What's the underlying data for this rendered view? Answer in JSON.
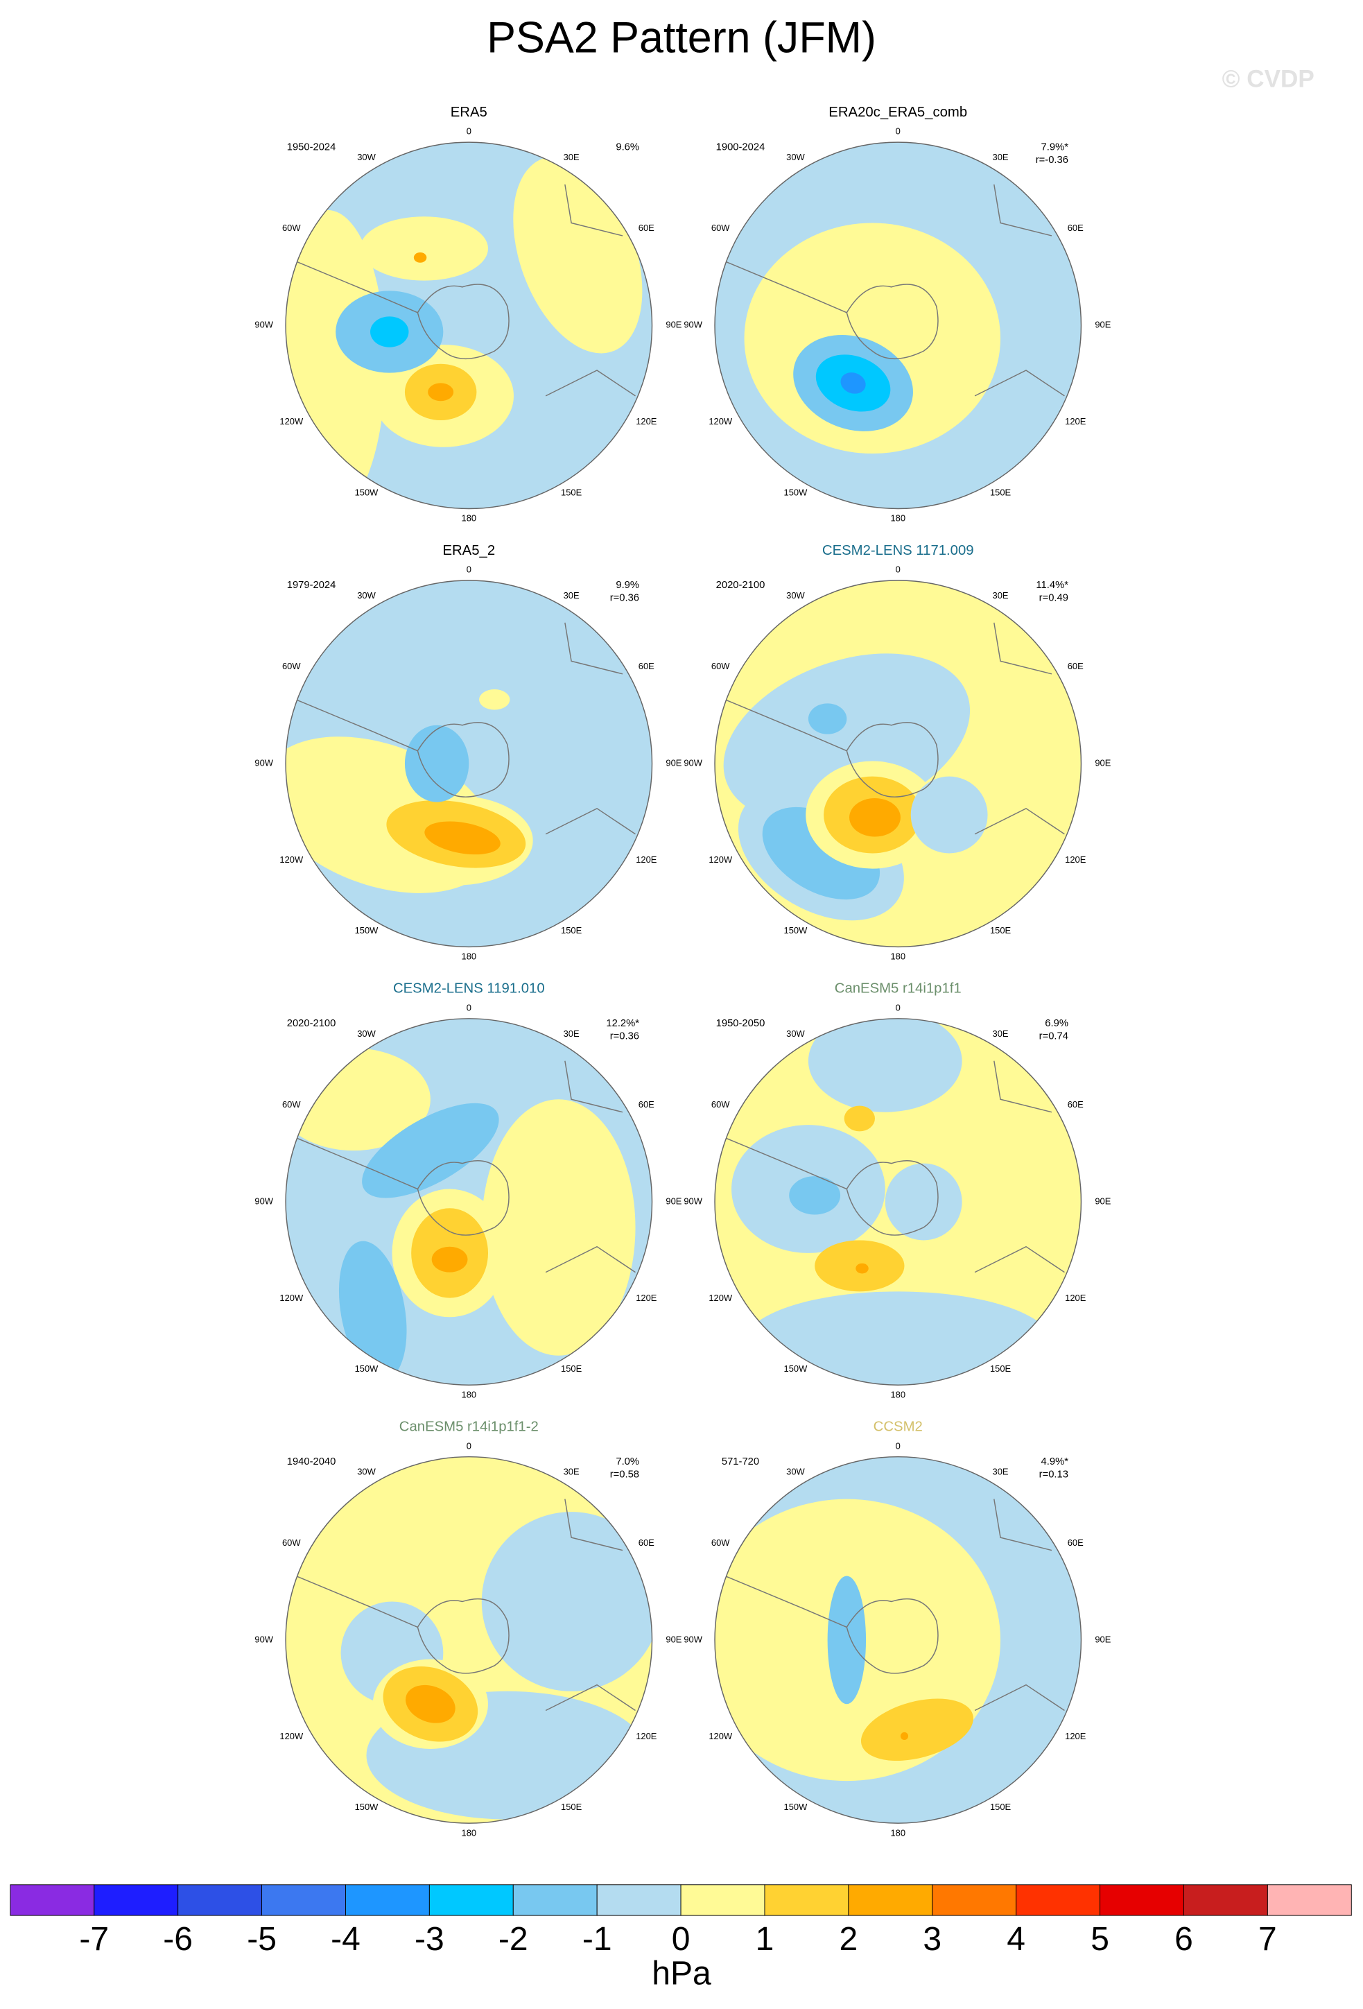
{
  "title": "PSA2 Pattern (JFM)",
  "watermark": "© CVDP",
  "longitude_labels": [
    "0",
    "30E",
    "60E",
    "90E",
    "120E",
    "150E",
    "180",
    "150W",
    "120W",
    "90W",
    "60W",
    "30W"
  ],
  "panels": [
    {
      "title": "ERA5",
      "title_color": "#000000",
      "period": "1950-2024",
      "percent": "9.6%"
    },
    {
      "title": "ERA20c_ERA5_comb",
      "title_color": "#000000",
      "period": "1900-2024",
      "percent": "7.9%*",
      "r": "r=-0.36"
    },
    {
      "title": "ERA5_2",
      "title_color": "#000000",
      "period": "1979-2024",
      "percent": "9.9%",
      "r": "r=0.36"
    },
    {
      "title": "CESM2-LENS 1171.009",
      "title_color": "#1a6e8c",
      "period": "2020-2100",
      "percent": "11.4%*",
      "r": "r=0.49"
    },
    {
      "title": "CESM2-LENS 1191.010",
      "title_color": "#1a6e8c",
      "period": "2020-2100",
      "percent": "12.2%*",
      "r": "r=0.36"
    },
    {
      "title": "CanESM5 r14i1p1f1",
      "title_color": "#6b8f6b",
      "period": "1950-2050",
      "percent": "6.9%",
      "r": "r=0.74"
    },
    {
      "title": "CanESM5 r14i1p1f1-2",
      "title_color": "#6b8f6b",
      "period": "1940-2040",
      "percent": "7.0%",
      "r": "r=0.58"
    },
    {
      "title": "CCSM2",
      "title_color": "#d4c06a",
      "period": "571-720",
      "percent": "4.9%*",
      "r": "r=0.13"
    }
  ],
  "colorbar": {
    "colors": [
      "#8a2be2",
      "#1e1eff",
      "#2d50e6",
      "#3c78f0",
      "#1e96ff",
      "#00c8ff",
      "#78c8f0",
      "#b4dcf0",
      "#fffa96",
      "#ffd232",
      "#ffaa00",
      "#ff7800",
      "#ff3200",
      "#e60000",
      "#c81e1e",
      "#ffb4b4"
    ],
    "ticks": [
      -7,
      -6,
      -5,
      -4,
      -3,
      -2,
      -1,
      0,
      1,
      2,
      3,
      4,
      5,
      6,
      7
    ],
    "unit": "hPa"
  }
}
